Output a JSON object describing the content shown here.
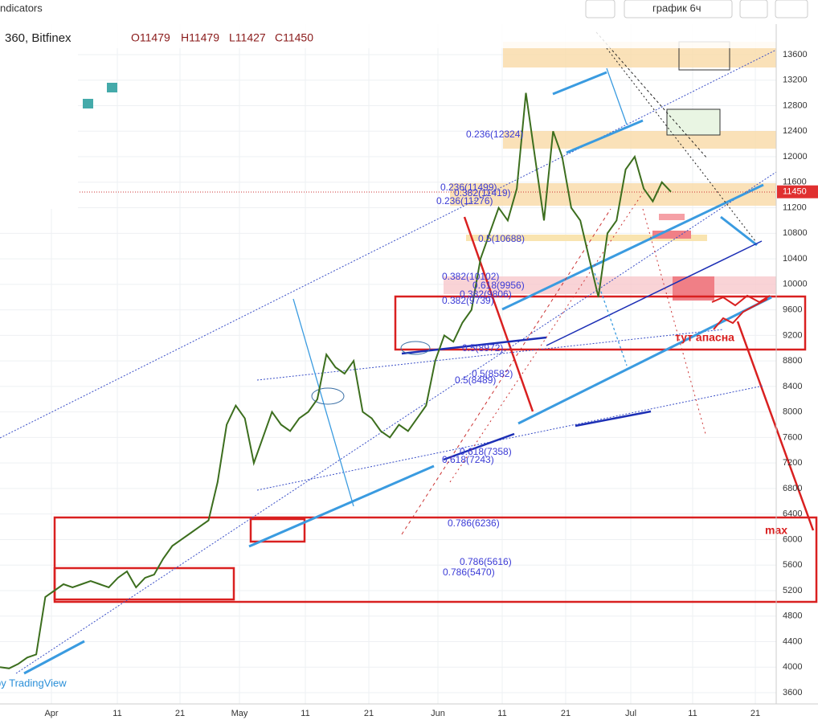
{
  "toolbar": {
    "indicators": "ndicators",
    "interval": "график 6ч"
  },
  "header": {
    "symbol": "360, Bitfinex",
    "ohlc": [
      "O11479",
      "H11479",
      "L11427",
      "C11450"
    ]
  },
  "price_axis": {
    "ticks": [
      3600,
      4000,
      4400,
      4800,
      5200,
      5600,
      6000,
      6400,
      6800,
      7200,
      7600,
      8000,
      8400,
      8800,
      9200,
      9600,
      10000,
      10400,
      10800,
      11200,
      11600,
      12000,
      12400,
      12800,
      13200,
      13600
    ],
    "current_price": 11450
  },
  "time_axis": {
    "labels": [
      "Apr",
      "11",
      "21",
      "May",
      "11",
      "21",
      "Jun",
      "11",
      "21",
      "Jul",
      "11",
      "21"
    ]
  },
  "fib_labels": [
    "0.236(12324)",
    "0.236(11499)",
    "0.382(11419)",
    "0.236(11276)",
    "0.5(10688)",
    "0.382(10102)",
    "0.618(9956)",
    "0.382(9806)",
    "0.382(9739)",
    "0.5(8972)",
    "0.5(8582)",
    "0.5(8489)",
    "0.618(7358)",
    "0.618(7243)",
    "0.786(6236)",
    "0.786(5616)",
    "0.786(5470)"
  ],
  "annotations": {
    "danger": "тут апасна",
    "max": "max",
    "watermark": "by TradingView"
  },
  "price_path": {
    "values": [
      4000,
      3980,
      4050,
      4150,
      4200,
      5100,
      5200,
      5300,
      5250,
      5300,
      5350,
      5300,
      5250,
      5400,
      5500,
      5250,
      5400,
      5450,
      5700,
      5900,
      6000,
      6100,
      6200,
      6300,
      6900,
      7800,
      8100,
      7900,
      7200,
      7600,
      8000,
      7800,
      7700,
      7900,
      8000,
      8200,
      8900,
      8700,
      8600,
      8800,
      8000,
      7900,
      7700,
      7600,
      7800,
      7700,
      7900,
      8100,
      8800,
      9200,
      9100,
      9400,
      9600,
      10400,
      10800,
      11200,
      11000,
      11500,
      13000,
      12000,
      11000,
      12400,
      12000,
      11200,
      11000,
      10400,
      9800,
      10800,
      11000,
      11800,
      12000,
      11500,
      11300,
      11600,
      11450
    ]
  }
}
